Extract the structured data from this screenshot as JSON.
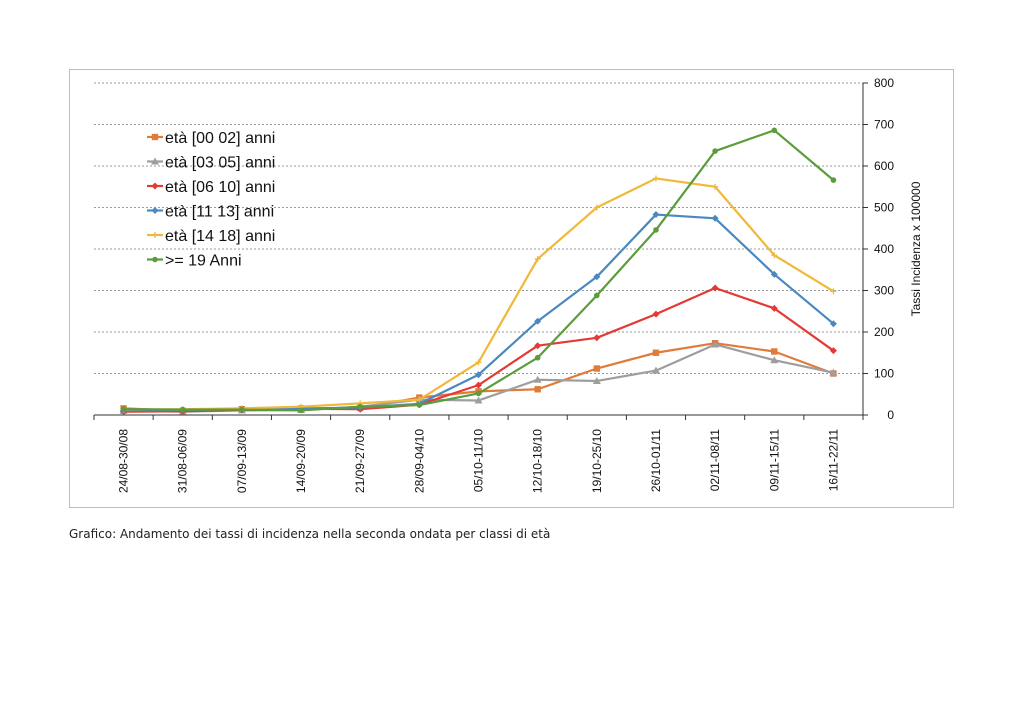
{
  "caption": "Grafico: Andamento dei tassi di incidenza nella seconda ondata per classi di età",
  "chart_data": {
    "type": "line",
    "title": "",
    "xlabel": "",
    "ylabel": "Tassi Incidenza x 100000",
    "y_axis_side": "right",
    "ylim": [
      0,
      800
    ],
    "y_ticks": [
      0,
      100,
      200,
      300,
      400,
      500,
      600,
      700,
      800
    ],
    "grid": "horizontal-dashed",
    "legend_position": "top-left",
    "categories": [
      "24/08-30/08",
      "31/08-06/09",
      "07/09-13/09",
      "14/09-20/09",
      "21/09-27/09",
      "28/09-04/10",
      "05/10-11/10",
      "12/10-18/10",
      "19/10-25/10",
      "26/10-01/11",
      "02/11-08/11",
      "09/11-15/11",
      "16/11-22/11"
    ],
    "series": [
      {
        "name": "età [00 02] anni",
        "color": "#e07b39",
        "marker": "square",
        "values": [
          16,
          10,
          14,
          16,
          17,
          42,
          57,
          62,
          112,
          150,
          173,
          153,
          100
        ]
      },
      {
        "name": "età [03 05] anni",
        "color": "#9e9e9e",
        "marker": "triangle",
        "values": [
          10,
          8,
          11,
          12,
          20,
          37,
          35,
          85,
          82,
          107,
          170,
          132,
          102
        ]
      },
      {
        "name": "età [06 10] anni",
        "color": "#e53935",
        "marker": "diamond",
        "values": [
          8,
          9,
          12,
          15,
          14,
          25,
          72,
          167,
          186,
          243,
          306,
          257,
          155
        ]
      },
      {
        "name": "età [11 13] anni",
        "color": "#4a88c2",
        "marker": "diamond",
        "values": [
          11,
          12,
          14,
          15,
          18,
          27,
          97,
          226,
          333,
          483,
          474,
          339,
          220
        ]
      },
      {
        "name": "età [14 18] anni",
        "color": "#f0b93a",
        "marker": "cross",
        "values": [
          13,
          14,
          16,
          20,
          28,
          37,
          127,
          376,
          500,
          570,
          550,
          385,
          298
        ]
      },
      {
        "name": ">= 19 Anni",
        "color": "#5b9c3c",
        "marker": "circle",
        "values": [
          14,
          13,
          13,
          11,
          20,
          24,
          52,
          138,
          288,
          446,
          636,
          686,
          566
        ]
      }
    ]
  }
}
